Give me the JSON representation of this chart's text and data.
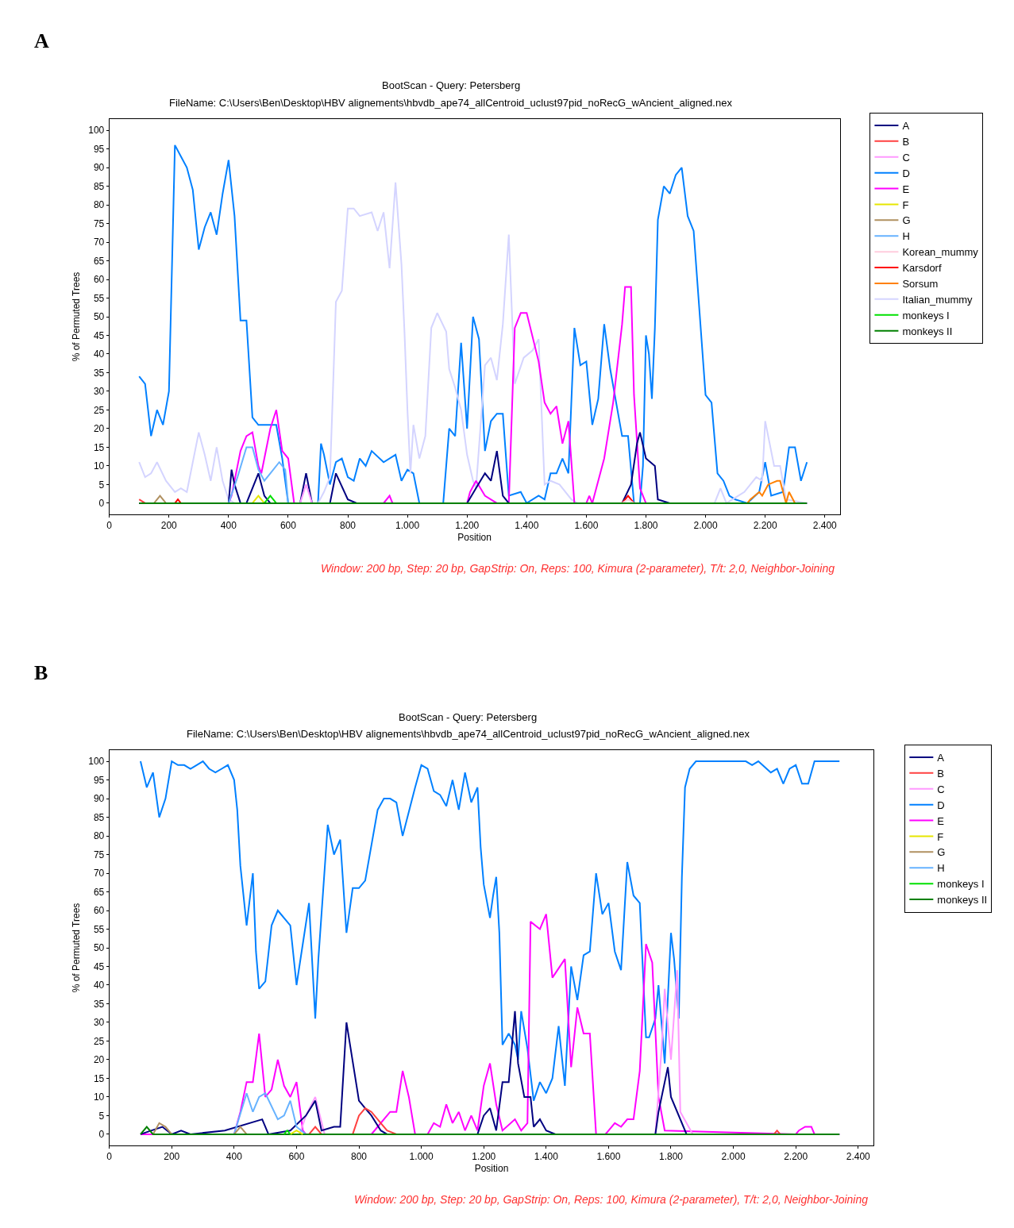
{
  "chart_data": [
    {
      "type": "line",
      "title": "BootScan - Query: Petersberg",
      "subtitle": "FileName: C:\\Users\\Ben\\Desktop\\HBV alignements\\hbvdb_ape74_allCentroid_uclust97pid_noRecG_wAncient_aligned.nex",
      "xlabel": "Position",
      "ylabel": "% of Permuted Trees",
      "annotations": [
        "A",
        "Window: 200 bp, Step: 20 bp, GapStrip: On, Reps: 100, Kimura (2-parameter), T/t: 2,0, Neighbor-Joining"
      ],
      "xlim": [
        0,
        2450
      ],
      "ylim": [
        -3,
        103
      ],
      "xticks": [
        0,
        200,
        400,
        600,
        800,
        {
          "value": 1000,
          "label": "1.000"
        },
        {
          "value": 1200,
          "label": "1.200"
        },
        {
          "value": 1400,
          "label": "1.400"
        },
        {
          "value": 1600,
          "label": "1.600"
        },
        {
          "value": 1800,
          "label": "1.800"
        },
        {
          "value": 2000,
          "label": "2.000"
        },
        {
          "value": 2200,
          "label": "2.200"
        },
        {
          "value": 2400,
          "label": "2.400"
        }
      ],
      "yticks": [
        0,
        5,
        10,
        15,
        20,
        25,
        30,
        35,
        40,
        45,
        50,
        55,
        60,
        65,
        70,
        75,
        80,
        85,
        90,
        95,
        100
      ],
      "grid": false,
      "legend": "top right",
      "marker": "none",
      "line_style": "solid",
      "series": [
        {
          "name": "A",
          "color": "#000080",
          "x": [
            100,
            400,
            410,
            420,
            440,
            460,
            500,
            520,
            540,
            640,
            660,
            680,
            740,
            760,
            800,
            830,
            1200,
            1230,
            1260,
            1280,
            1300,
            1320,
            1340,
            1720,
            1750,
            1770,
            1780,
            1800,
            1830,
            1840,
            1880,
            2340
          ],
          "values": [
            0,
            0,
            9,
            5,
            0,
            0,
            8,
            2,
            0,
            0,
            8,
            0,
            0,
            8,
            1,
            0,
            0,
            4,
            8,
            6,
            14,
            2,
            0,
            0,
            5,
            16,
            19,
            12,
            10,
            1,
            0,
            0
          ]
        },
        {
          "name": "B",
          "color": "#ff4040",
          "x": [
            100,
            120
          ],
          "values": [
            1,
            0
          ]
        },
        {
          "name": "C",
          "color": "#ff99ff",
          "x": [
            640,
            660,
            680
          ],
          "values": [
            0,
            5,
            0
          ]
        },
        {
          "name": "D",
          "color": "#0080ff",
          "x": [
            100,
            120,
            140,
            160,
            180,
            200,
            220,
            240,
            260,
            280,
            300,
            320,
            340,
            360,
            380,
            400,
            420,
            440,
            460,
            480,
            500,
            560,
            580,
            600,
            700,
            710,
            720,
            740,
            760,
            780,
            800,
            820,
            840,
            860,
            880,
            920,
            960,
            980,
            1000,
            1020,
            1040,
            1120,
            1140,
            1160,
            1180,
            1200,
            1220,
            1240,
            1260,
            1280,
            1300,
            1320,
            1340,
            1380,
            1400,
            1440,
            1460,
            1480,
            1500,
            1520,
            1540,
            1560,
            1580,
            1600,
            1620,
            1640,
            1660,
            1680,
            1720,
            1740,
            1760,
            1780,
            1790,
            1800,
            1810,
            1820,
            1830,
            1840,
            1860,
            1880,
            1900,
            1920,
            1940,
            1960,
            1980,
            2000,
            2020,
            2040,
            2060,
            2080,
            2100,
            2140,
            2180,
            2200,
            2220,
            2260,
            2280,
            2300,
            2320,
            2340
          ],
          "values": [
            34,
            32,
            18,
            25,
            21,
            30,
            96,
            93,
            90,
            84,
            68,
            74,
            78,
            72,
            83,
            92,
            77,
            49,
            49,
            23,
            21,
            21,
            12,
            0,
            0,
            16,
            13,
            5,
            11,
            12,
            7,
            6,
            12,
            10,
            14,
            11,
            13,
            6,
            9,
            8,
            0,
            0,
            20,
            18,
            43,
            20,
            50,
            44,
            14,
            22,
            24,
            24,
            2,
            3,
            0,
            2,
            1,
            8,
            8,
            12,
            8,
            47,
            37,
            38,
            21,
            28,
            48,
            36,
            18,
            18,
            0,
            0,
            10,
            45,
            40,
            28,
            47,
            76,
            85,
            83,
            88,
            90,
            77,
            73,
            51,
            29,
            27,
            8,
            6,
            2,
            1,
            0,
            3,
            11,
            2,
            3,
            15,
            15,
            6,
            11
          ]
        },
        {
          "name": "E",
          "color": "#ff00ff",
          "x": [
            100,
            400,
            410,
            440,
            460,
            480,
            500,
            510,
            540,
            560,
            580,
            600,
            620,
            920,
            940,
            950,
            1200,
            1210,
            1230,
            1260,
            1300,
            1340,
            1360,
            1380,
            1400,
            1440,
            1460,
            1480,
            1500,
            1520,
            1540,
            1560,
            1600,
            1610,
            1620,
            1660,
            1690,
            1720,
            1730,
            1750,
            1760,
            1780,
            1800,
            2340
          ],
          "values": [
            0,
            0,
            2,
            14,
            18,
            19,
            10,
            8,
            20,
            25,
            14,
            12,
            0,
            0,
            2,
            0,
            0,
            3,
            6,
            2,
            0,
            0,
            47,
            51,
            51,
            38,
            27,
            24,
            26,
            16,
            22,
            0,
            0,
            2,
            0,
            12,
            27,
            48,
            58,
            58,
            29,
            4,
            0,
            0
          ]
        },
        {
          "name": "F",
          "color": "#e6e600",
          "x": [
            480,
            500,
            520
          ],
          "values": [
            0,
            2,
            0
          ]
        },
        {
          "name": "G",
          "color": "#b09060",
          "x": [
            150,
            170,
            190
          ],
          "values": [
            0,
            2,
            0
          ]
        },
        {
          "name": "H",
          "color": "#66b2ff",
          "x": [
            400,
            430,
            460,
            480,
            500,
            520,
            540,
            570,
            590,
            600
          ],
          "values": [
            0,
            7,
            15,
            15,
            9,
            6,
            8,
            11,
            9,
            0
          ]
        },
        {
          "name": "Korean_mummy",
          "color": "#ffccdd",
          "x": [
            1720,
            1740,
            1760
          ],
          "values": [
            0,
            1,
            0
          ]
        },
        {
          "name": "Karsdorf",
          "color": "#ff0000",
          "x": [
            220,
            230,
            240,
            1000,
            1720,
            1740,
            1760
          ],
          "values": [
            0,
            1,
            0,
            null,
            0,
            2,
            0
          ]
        },
        {
          "name": "Sorsum",
          "color": "#ff8000",
          "x": [
            2140,
            2150,
            2180,
            2190,
            2210,
            2240,
            2250,
            2270,
            2280,
            2300
          ],
          "values": [
            0,
            1,
            3,
            2,
            5,
            6,
            6,
            0,
            3,
            0
          ]
        },
        {
          "name": "Italian_mummy",
          "color": "#d4d4ff",
          "x": [
            100,
            120,
            140,
            160,
            190,
            220,
            240,
            260,
            300,
            320,
            340,
            360,
            380,
            400,
            420,
            680,
            700,
            720,
            740,
            750,
            760,
            780,
            800,
            820,
            840,
            880,
            900,
            920,
            940,
            960,
            980,
            990,
            1000,
            1010,
            1020,
            1040,
            1060,
            1080,
            1100,
            1130,
            1140,
            1160,
            1180,
            1200,
            1220,
            1230,
            1260,
            1280,
            1300,
            1320,
            1340,
            1360,
            1390,
            1420,
            1440,
            1460,
            1480,
            1510,
            1550,
            1570,
            2030,
            2050,
            2070,
            2130,
            2170,
            2190,
            2200,
            2230,
            2250,
            2270,
            2340
          ],
          "values": [
            11,
            7,
            8,
            11,
            6,
            3,
            4,
            3,
            19,
            13,
            6,
            15,
            6,
            1,
            0,
            0,
            0,
            3,
            7,
            30,
            54,
            57,
            79,
            79,
            77,
            78,
            73,
            78,
            63,
            86,
            64,
            46,
            25,
            8,
            21,
            12,
            18,
            47,
            51,
            46,
            36,
            31,
            25,
            13,
            6,
            4,
            37,
            39,
            33,
            48,
            72,
            32,
            39,
            41,
            44,
            5,
            6,
            5,
            1,
            0,
            0,
            4,
            0,
            3,
            7,
            6,
            22,
            10,
            10,
            1,
            0
          ]
        },
        {
          "name": "monkeys I",
          "color": "#00e000",
          "x": [
            520,
            540,
            560
          ],
          "values": [
            0,
            2,
            0
          ]
        },
        {
          "name": "monkeys II",
          "color": "#008000",
          "x": [
            100,
            2340
          ],
          "values": [
            0,
            0
          ]
        }
      ]
    },
    {
      "type": "line",
      "title": "BootScan - Query: Petersberg",
      "subtitle": "FileName: C:\\Users\\Ben\\Desktop\\HBV alignements\\hbvdb_ape74_allCentroid_uclust97pid_noRecG_wAncient_aligned.nex",
      "xlabel": "Position",
      "ylabel": "% of Permuted Trees",
      "annotations": [
        "B",
        "Window: 200 bp, Step: 20 bp, GapStrip: On, Reps: 100, Kimura (2-parameter), T/t: 2,0, Neighbor-Joining"
      ],
      "xlim": [
        0,
        2450
      ],
      "ylim": [
        -3,
        103
      ],
      "xticks": [
        0,
        200,
        400,
        600,
        800,
        {
          "value": 1000,
          "label": "1.000"
        },
        {
          "value": 1200,
          "label": "1.200"
        },
        {
          "value": 1400,
          "label": "1.400"
        },
        {
          "value": 1600,
          "label": "1.600"
        },
        {
          "value": 1800,
          "label": "1.800"
        },
        {
          "value": 2000,
          "label": "2.000"
        },
        {
          "value": 2200,
          "label": "2.200"
        },
        {
          "value": 2400,
          "label": "2.400"
        }
      ],
      "yticks": [
        0,
        5,
        10,
        15,
        20,
        25,
        30,
        35,
        40,
        45,
        50,
        55,
        60,
        65,
        70,
        75,
        80,
        85,
        90,
        95,
        100
      ],
      "grid": false,
      "legend": "top right",
      "marker": "none",
      "line_style": "solid",
      "series": [
        {
          "name": "A",
          "color": "#000080",
          "x": [
            100,
            170,
            200,
            230,
            260,
            370,
            490,
            510,
            580,
            630,
            660,
            680,
            720,
            740,
            760,
            800,
            820,
            840,
            870,
            890,
            1180,
            1200,
            1220,
            1240,
            1260,
            1280,
            1300,
            1310,
            1330,
            1350,
            1360,
            1380,
            1400,
            1430,
            1750,
            1760,
            1790,
            1800,
            1850,
            2340
          ],
          "values": [
            0,
            2,
            0,
            1,
            0,
            1,
            4,
            0,
            1,
            5,
            9,
            1,
            2,
            2,
            30,
            9,
            7,
            5,
            1,
            0,
            0,
            5,
            7,
            1,
            14,
            14,
            33,
            19,
            10,
            10,
            2,
            4,
            1,
            0,
            0,
            6,
            18,
            10,
            0,
            0
          ]
        },
        {
          "name": "B",
          "color": "#ff4040",
          "x": [
            640,
            660,
            680,
            780,
            800,
            820,
            840,
            870,
            890,
            920,
            1500,
            2130,
            2140,
            2150
          ],
          "values": [
            0,
            2,
            0,
            0,
            5,
            7,
            6,
            3,
            1,
            0,
            null,
            0,
            1,
            0
          ]
        },
        {
          "name": "C",
          "color": "#ff99ff",
          "x": [
            610,
            630,
            660,
            690,
            1200,
            1750,
            1770,
            1780,
            1800,
            1820,
            1830,
            1870
          ],
          "values": [
            0,
            5,
            10,
            0,
            null,
            0,
            23,
            39,
            20,
            44,
            6,
            0
          ]
        },
        {
          "name": "D",
          "color": "#0080ff",
          "x": [
            100,
            120,
            140,
            160,
            180,
            200,
            220,
            240,
            260,
            280,
            300,
            320,
            340,
            360,
            380,
            400,
            410,
            420,
            440,
            460,
            470,
            480,
            500,
            520,
            540,
            580,
            600,
            640,
            660,
            670,
            700,
            720,
            740,
            760,
            780,
            800,
            820,
            860,
            880,
            900,
            920,
            940,
            980,
            1000,
            1020,
            1040,
            1060,
            1080,
            1100,
            1120,
            1140,
            1160,
            1180,
            1190,
            1200,
            1220,
            1230,
            1240,
            1250,
            1260,
            1280,
            1300,
            1310,
            1320,
            1340,
            1360,
            1380,
            1400,
            1420,
            1440,
            1460,
            1480,
            1500,
            1520,
            1540,
            1560,
            1580,
            1600,
            1620,
            1640,
            1660,
            1680,
            1700,
            1720,
            1730,
            1750,
            1760,
            1780,
            1800,
            1810,
            1825,
            1835,
            1845,
            1860,
            1880,
            2040,
            2060,
            2080,
            2120,
            2140,
            2160,
            2180,
            2200,
            2220,
            2240,
            2260,
            2340
          ],
          "values": [
            100,
            93,
            97,
            85,
            90,
            100,
            99,
            99,
            98,
            99,
            100,
            98,
            97,
            98,
            99,
            95,
            87,
            72,
            56,
            70,
            49,
            39,
            41,
            56,
            60,
            56,
            40,
            62,
            31,
            47,
            83,
            75,
            79,
            54,
            66,
            66,
            68,
            87,
            90,
            90,
            89,
            80,
            93,
            99,
            98,
            92,
            91,
            88,
            95,
            87,
            97,
            89,
            93,
            77,
            67,
            58,
            64,
            69,
            54,
            24,
            27,
            24,
            20,
            33,
            23,
            9,
            14,
            11,
            15,
            29,
            13,
            45,
            36,
            48,
            49,
            70,
            59,
            62,
            49,
            44,
            73,
            64,
            62,
            26,
            26,
            31,
            40,
            19,
            54,
            47,
            31,
            69,
            93,
            98,
            100,
            100,
            99,
            100,
            97,
            98,
            94,
            98,
            99,
            94,
            94,
            100,
            100
          ]
        },
        {
          "name": "E",
          "color": "#ff00ff",
          "x": [
            100,
            400,
            420,
            440,
            460,
            480,
            500,
            520,
            540,
            560,
            580,
            600,
            620,
            630,
            840,
            860,
            900,
            920,
            940,
            960,
            980,
            1020,
            1040,
            1060,
            1080,
            1100,
            1120,
            1140,
            1160,
            1180,
            1200,
            1220,
            1240,
            1260,
            1300,
            1320,
            1340,
            1350,
            1380,
            1400,
            1420,
            1460,
            1480,
            1500,
            1520,
            1540,
            1560,
            1590,
            1620,
            1640,
            1660,
            1680,
            1700,
            1720,
            1740,
            1760,
            1780,
            2200,
            2210,
            2230,
            2250,
            2260,
            2340
          ],
          "values": [
            0,
            0,
            6,
            14,
            14,
            27,
            10,
            12,
            20,
            13,
            10,
            14,
            1,
            0,
            0,
            2,
            6,
            6,
            17,
            10,
            0,
            0,
            3,
            2,
            8,
            3,
            6,
            1,
            5,
            1,
            13,
            19,
            8,
            1,
            4,
            1,
            3,
            57,
            55,
            59,
            42,
            47,
            18,
            34,
            27,
            27,
            0,
            0,
            3,
            2,
            4,
            4,
            17,
            51,
            46,
            10,
            1,
            0,
            1,
            2,
            2,
            0,
            0
          ]
        },
        {
          "name": "F",
          "color": "#e6e600",
          "x": [
            580,
            600,
            620
          ],
          "values": [
            0,
            1,
            0
          ]
        },
        {
          "name": "G",
          "color": "#b09060",
          "x": [
            140,
            160,
            180,
            200,
            300,
            400,
            420,
            440
          ],
          "values": [
            0,
            3,
            2,
            0,
            null,
            0,
            2,
            0
          ]
        },
        {
          "name": "H",
          "color": "#66b2ff",
          "x": [
            400,
            440,
            460,
            480,
            500,
            540,
            560,
            580,
            600,
            630
          ],
          "values": [
            0,
            11,
            6,
            10,
            11,
            4,
            5,
            9,
            2,
            0
          ]
        },
        {
          "name": "monkeys I",
          "color": "#00e000",
          "x": [
            560,
            570,
            580
          ],
          "values": [
            0,
            1,
            0
          ]
        },
        {
          "name": "monkeys II",
          "color": "#008000",
          "x": [
            100,
            120,
            140,
            2340
          ],
          "values": [
            0,
            2,
            0,
            0
          ]
        }
      ]
    }
  ]
}
